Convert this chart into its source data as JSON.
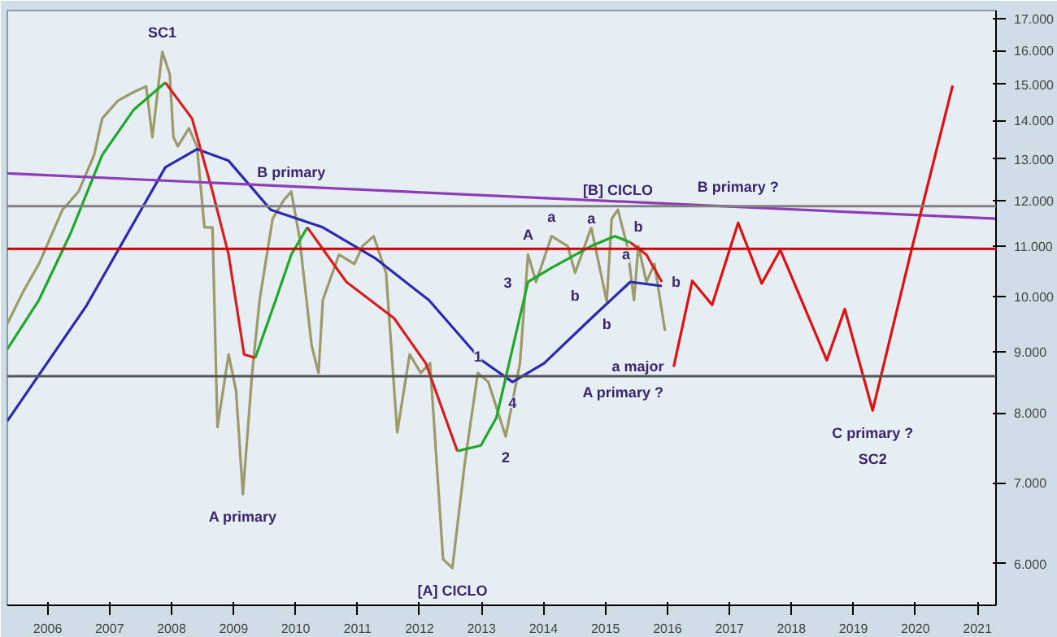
{
  "chart_data": {
    "type": "line",
    "log": "y",
    "grid": false,
    "marker": "none",
    "line_style": "solid",
    "xlim": [
      2005.35,
      2021.3
    ],
    "ylim": [
      5540,
      17270
    ],
    "xticks": [
      {
        "value": 2006,
        "label": "2006"
      },
      {
        "value": 2007,
        "label": "2007"
      },
      {
        "value": 2008,
        "label": "2008"
      },
      {
        "value": 2009,
        "label": "2009"
      },
      {
        "value": 2010,
        "label": "2010"
      },
      {
        "value": 2011,
        "label": "2011"
      },
      {
        "value": 2012,
        "label": "2012"
      },
      {
        "value": 2013,
        "label": "2013"
      },
      {
        "value": 2014,
        "label": "2014"
      },
      {
        "value": 2015,
        "label": "2015"
      },
      {
        "value": 2016,
        "label": "2016"
      },
      {
        "value": 2017,
        "label": "2017"
      },
      {
        "value": 2018,
        "label": "2018"
      },
      {
        "value": 2019,
        "label": "2019"
      },
      {
        "value": 2020,
        "label": "2020"
      },
      {
        "value": 2021,
        "label": "2021"
      }
    ],
    "yticks": [
      {
        "value": 6000,
        "label": "6.000"
      },
      {
        "value": 7000,
        "label": "7.000"
      },
      {
        "value": 8000,
        "label": "8.000"
      },
      {
        "value": 9000,
        "label": "9.000"
      },
      {
        "value": 10000,
        "label": "10.000"
      },
      {
        "value": 11000,
        "label": "11.000"
      },
      {
        "value": 12000,
        "label": "12.000"
      },
      {
        "value": 13000,
        "label": "13.000"
      },
      {
        "value": 14000,
        "label": "14.000"
      },
      {
        "value": 15000,
        "label": "15.000"
      },
      {
        "value": 16000,
        "label": "16.000"
      },
      {
        "value": 17000,
        "label": "17.000"
      }
    ],
    "ref_lines": [
      {
        "axis": "y",
        "value": 11884,
        "color": "#808080"
      },
      {
        "axis": "y",
        "value": 10950,
        "color": "#cc0000"
      },
      {
        "axis": "y",
        "value": 8584,
        "color": "#555555"
      }
    ],
    "series": [
      {
        "color": "#9c9a6a",
        "x": [
          2005.35,
          2005.61,
          2005.86,
          2006.24,
          2006.5,
          2006.75,
          2006.88,
          2007.13,
          2007.39,
          2007.59,
          2007.69,
          2007.85,
          2007.97,
          2008.03,
          2008.1,
          2008.28,
          2008.41,
          2008.53,
          2008.66,
          2008.74,
          2008.92,
          2009.04,
          2009.15,
          2009.3,
          2009.42,
          2009.63,
          2009.81,
          2009.93,
          2010.06,
          2010.26,
          2010.37,
          2010.44,
          2010.7,
          2010.95,
          2011.08,
          2011.26,
          2011.46,
          2011.64,
          2011.84,
          2012.02,
          2012.17,
          2012.38,
          2012.53,
          2012.73,
          2012.94,
          2013.11,
          2013.39,
          2013.62,
          2013.75,
          2013.88,
          2014.13,
          2014.39,
          2014.51,
          2014.77,
          2015.02,
          2015.1,
          2015.2,
          2015.35,
          2015.46,
          2015.53,
          2015.66,
          2015.79,
          2015.96
        ],
        "values": [
          9490,
          10100,
          10640,
          11800,
          12220,
          13100,
          14050,
          14530,
          14780,
          14940,
          13560,
          15960,
          15300,
          13560,
          13320,
          13790,
          13320,
          11410,
          11410,
          7790,
          8950,
          8350,
          6850,
          8640,
          9930,
          11600,
          12020,
          12220,
          11220,
          9100,
          8640,
          9930,
          10830,
          10640,
          11010,
          11220,
          10460,
          7710,
          8950,
          8640,
          8800,
          6050,
          5950,
          7270,
          8640,
          8490,
          7650,
          8800,
          10830,
          10280,
          11220,
          11010,
          10460,
          11410,
          9900,
          11600,
          11800,
          11010,
          9930,
          11010,
          10280,
          10640,
          9360
        ]
      },
      {
        "color": "#2a2ab0",
        "x": [
          2005.35,
          2006.63,
          2007.9,
          2008.41,
          2008.92,
          2009.6,
          2010.44,
          2011.28,
          2012.15,
          2012.99,
          2013.5,
          2014.01,
          2014.77,
          2015.4,
          2015.91
        ],
        "values": [
          7880,
          9830,
          12800,
          13250,
          12960,
          11800,
          11410,
          10760,
          9930,
          8860,
          8490,
          8800,
          9590,
          10280,
          10200
        ]
      },
      {
        "color": "#1fa82a",
        "x": [
          2005.35,
          2005.86,
          2006.37,
          2006.88,
          2007.39,
          2007.9
        ],
        "values": [
          9040,
          9930,
          11280,
          13100,
          14290,
          15050
        ]
      },
      {
        "color": "#d81e1e",
        "x": [
          2007.9,
          2008.33,
          2008.66,
          2008.92,
          2009.17,
          2009.35
        ],
        "values": [
          15050,
          14050,
          12220,
          10830,
          8950,
          8890
        ]
      },
      {
        "color": "#1fa82a",
        "x": [
          2009.35,
          2009.68,
          2009.93,
          2010.19
        ],
        "values": [
          8890,
          9930,
          10830,
          11410
        ]
      },
      {
        "color": "#d81e1e",
        "x": [
          2010.19,
          2010.82,
          2011.59,
          2012.1,
          2012.61
        ],
        "values": [
          11410,
          10280,
          9590,
          8800,
          7440
        ]
      },
      {
        "color": "#1fa82a",
        "x": [
          2012.61,
          2012.99,
          2013.24,
          2013.75,
          2014.13,
          2014.77,
          2015.15,
          2015.4
        ],
        "values": [
          7440,
          7520,
          7930,
          10280,
          10560,
          11010,
          11220,
          11090
        ]
      },
      {
        "color": "#d81e1e",
        "x": [
          2015.4,
          2015.66,
          2015.91
        ],
        "values": [
          11090,
          10830,
          10280
        ]
      },
      {
        "color": "#8e3cb8",
        "x": [
          2005.35,
          2021.3
        ],
        "values": [
          12650,
          11600
        ]
      },
      {
        "color": "#e01010",
        "x": [
          2016.1,
          2016.4,
          2016.72,
          2017.14,
          2017.52,
          2017.82,
          2018.57,
          2018.86,
          2019.31,
          2019.94,
          2020.6
        ],
        "values": [
          8740,
          10300,
          9840,
          11510,
          10250,
          10930,
          8850,
          9760,
          8040,
          10950,
          14960
        ]
      }
    ],
    "annotations": [
      {
        "text": "SC1",
        "x": 2007.85,
        "y": 15960
      },
      {
        "text": "B primary",
        "x": 2009.93,
        "y": 12220
      },
      {
        "text": "A primary",
        "x": 2009.15,
        "y": 6850
      },
      {
        "text": "[A] CICLO",
        "x": 2012.53,
        "y": 5950
      },
      {
        "text": "1",
        "x": 2012.94,
        "y": 8640
      },
      {
        "text": "2",
        "x": 2013.39,
        "y": 7650
      },
      {
        "text": "3",
        "x": 2013.75,
        "y": 10280
      },
      {
        "text": "4",
        "x": 2013.5,
        "y": 8490
      },
      {
        "text": "A",
        "x": 2013.75,
        "y": 10830
      },
      {
        "text": "a",
        "x": 2014.13,
        "y": 11220
      },
      {
        "text": "b",
        "x": 2014.51,
        "y": 10460
      },
      {
        "text": "a",
        "x": 2015.1,
        "y": 11600
      },
      {
        "text": "b",
        "x": 2015.02,
        "y": 9900
      },
      {
        "text": "[B] CICLO",
        "x": 2015.2,
        "y": 11800
      },
      {
        "text": "b",
        "x": 2015.53,
        "y": 11010
      },
      {
        "text": "a",
        "x": 2015.66,
        "y": 10830
      },
      {
        "text": "b",
        "x": 2015.91,
        "y": 10280
      },
      {
        "text": "a major",
        "x": 2016.1,
        "y": 8740
      },
      {
        "text": "B primary ?",
        "x": 2017.14,
        "y": 11884
      },
      {
        "text": "A primary ?",
        "x": 2016.1,
        "y": 8740
      },
      {
        "text": "C primary ?",
        "x": 2019.31,
        "y": 8040
      },
      {
        "text": "SC2",
        "x": 2019.31,
        "y": 8040
      }
    ]
  }
}
